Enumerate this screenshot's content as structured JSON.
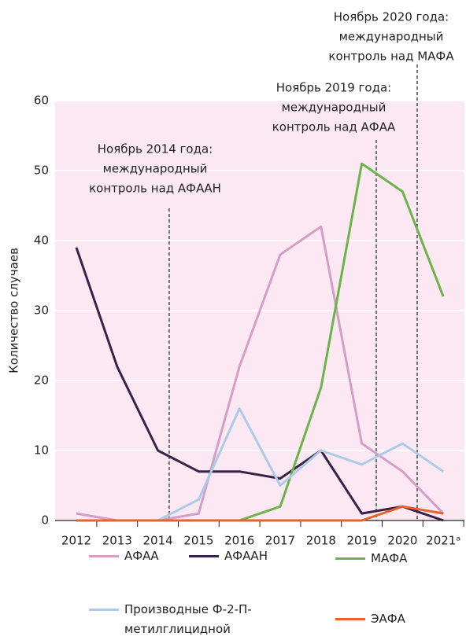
{
  "chart_data": {
    "type": "line",
    "y_label": "Количество случаев",
    "categories": [
      "2012",
      "2013",
      "2014",
      "2015",
      "2016",
      "2017",
      "2018",
      "2019",
      "2020",
      "2021ᵃ"
    ],
    "series": [
      {
        "name": "АФАА",
        "color": "#d59ec6",
        "values": [
          1,
          0,
          0,
          1,
          22,
          38,
          42,
          11,
          7,
          1
        ]
      },
      {
        "name": "АФААН",
        "color": "#3a2148",
        "values": [
          39,
          22,
          10,
          7,
          7,
          6,
          10,
          1,
          2,
          0
        ]
      },
      {
        "name": "МАФА",
        "color": "#6cb34a",
        "values": [
          0,
          0,
          0,
          0,
          0,
          2,
          19,
          51,
          47,
          32
        ]
      },
      {
        "name": "Производные Ф-2-П-метилглицидной кислоты",
        "color": "#abcbe6",
        "values": [
          0,
          0,
          0,
          3,
          16,
          5,
          10,
          8,
          11,
          7
        ]
      },
      {
        "name": "ЭАФА",
        "color": "#e8632b",
        "values": [
          0,
          0,
          0,
          0,
          0,
          0,
          0,
          0,
          2,
          1
        ]
      }
    ],
    "ylim": [
      0,
      60
    ],
    "yticks": [
      0,
      10,
      20,
      30,
      40,
      50,
      60
    ],
    "grid": true,
    "annotations": [
      [
        "Ноябрь 2014 года:",
        "международный",
        "контроль над АФААН"
      ],
      [
        "Ноябрь 2019 года:",
        "международный",
        "контроль над АФАА"
      ],
      [
        "Ноябрь 2020 года:",
        "международный",
        "контроль над МАФА"
      ]
    ]
  }
}
